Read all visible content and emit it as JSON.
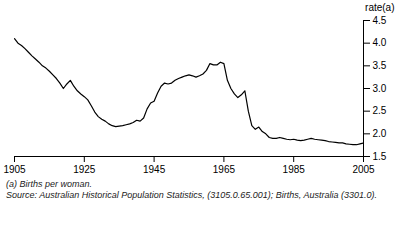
{
  "chart_data": {
    "type": "line",
    "ylabel": "rate(a)",
    "annotations": [
      "(a) Births per woman.",
      "Source: Australian Historical Population Statistics, (3105.0.65.001); Births, Australia (3301.0)."
    ],
    "color": "#000000",
    "xlim": [
      1905,
      2005
    ],
    "ylim": [
      1.5,
      4.5
    ],
    "xticks": [
      1905,
      1925,
      1945,
      1965,
      1985,
      2005
    ],
    "yticks": [
      1.5,
      {
        "value": 2.0,
        "label": "2.0"
      },
      2.5,
      {
        "value": 3.0,
        "label": "3.0"
      },
      3.5,
      {
        "value": 4.0,
        "label": "4.0"
      },
      4.5
    ],
    "x": [
      1905,
      1906,
      1907,
      1908,
      1909,
      1910,
      1911,
      1912,
      1913,
      1914,
      1915,
      1916,
      1917,
      1918,
      1919,
      1920,
      1921,
      1922,
      1923,
      1924,
      1925,
      1926,
      1927,
      1928,
      1929,
      1930,
      1931,
      1932,
      1933,
      1934,
      1935,
      1936,
      1937,
      1938,
      1939,
      1940,
      1941,
      1942,
      1943,
      1944,
      1945,
      1946,
      1947,
      1948,
      1949,
      1950,
      1951,
      1952,
      1953,
      1954,
      1955,
      1956,
      1957,
      1958,
      1959,
      1960,
      1961,
      1962,
      1963,
      1964,
      1965,
      1966,
      1967,
      1968,
      1969,
      1970,
      1971,
      1972,
      1973,
      1974,
      1975,
      1976,
      1977,
      1978,
      1979,
      1980,
      1981,
      1982,
      1983,
      1984,
      1985,
      1986,
      1987,
      1988,
      1989,
      1990,
      1991,
      1992,
      1993,
      1994,
      1995,
      1996,
      1997,
      1998,
      1999,
      2000,
      2001,
      2002,
      2003,
      2004,
      2005
    ],
    "values": [
      4.1,
      4.0,
      3.95,
      3.88,
      3.8,
      3.72,
      3.65,
      3.58,
      3.5,
      3.45,
      3.38,
      3.3,
      3.22,
      3.12,
      3.0,
      3.1,
      3.18,
      3.05,
      2.95,
      2.88,
      2.82,
      2.75,
      2.62,
      2.48,
      2.38,
      2.32,
      2.28,
      2.22,
      2.18,
      2.16,
      2.17,
      2.18,
      2.2,
      2.22,
      2.25,
      2.3,
      2.28,
      2.35,
      2.55,
      2.68,
      2.72,
      2.9,
      3.05,
      3.12,
      3.1,
      3.12,
      3.18,
      3.22,
      3.25,
      3.28,
      3.3,
      3.28,
      3.25,
      3.28,
      3.32,
      3.4,
      3.55,
      3.52,
      3.52,
      3.58,
      3.55,
      3.18,
      3.0,
      2.88,
      2.8,
      2.86,
      2.95,
      2.5,
      2.18,
      2.1,
      2.15,
      2.05,
      2.0,
      1.92,
      1.9,
      1.9,
      1.92,
      1.9,
      1.88,
      1.87,
      1.88,
      1.86,
      1.85,
      1.86,
      1.88,
      1.9,
      1.88,
      1.87,
      1.86,
      1.85,
      1.83,
      1.82,
      1.81,
      1.8,
      1.8,
      1.78,
      1.77,
      1.76,
      1.76,
      1.78,
      1.8
    ]
  }
}
